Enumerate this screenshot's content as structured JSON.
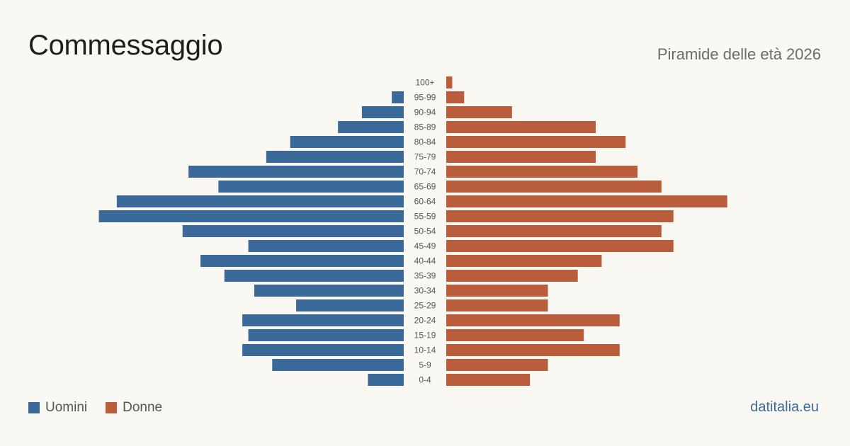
{
  "title": "Commessaggio",
  "subtitle": "Piramide delle età 2026",
  "brand": "datitalia.eu",
  "colors": {
    "male": "#3b6a9a",
    "female": "#b95d3d",
    "background": "#faf8f3"
  },
  "legend": {
    "male_label": "Uomini",
    "female_label": "Donne"
  },
  "chart_data": {
    "type": "bar",
    "orientation": "horizontal-population-pyramid",
    "categories": [
      "100+",
      "95-99",
      "90-94",
      "85-89",
      "80-84",
      "75-79",
      "70-74",
      "65-69",
      "60-64",
      "55-59",
      "50-54",
      "45-49",
      "40-44",
      "35-39",
      "30-34",
      "25-29",
      "20-24",
      "15-19",
      "10-14",
      "5-9",
      "0-4"
    ],
    "series": [
      {
        "name": "Uomini",
        "values": [
          0,
          2,
          7,
          11,
          19,
          23,
          36,
          31,
          48,
          51,
          37,
          26,
          34,
          30,
          25,
          18,
          27,
          26,
          27,
          22,
          6
        ]
      },
      {
        "name": "Donne",
        "values": [
          1,
          3,
          11,
          25,
          30,
          25,
          32,
          36,
          47,
          38,
          36,
          38,
          26,
          22,
          17,
          17,
          29,
          23,
          29,
          17,
          14
        ]
      }
    ],
    "legend_position": "bottom-left",
    "grid": false
  }
}
